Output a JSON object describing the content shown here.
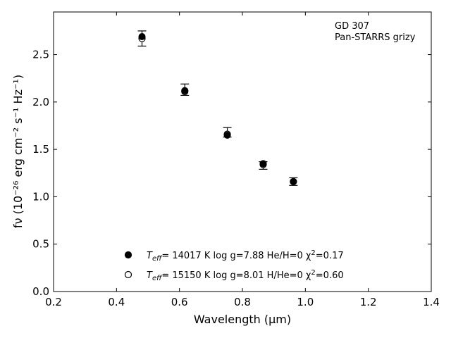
{
  "chart_data": {
    "type": "scatter",
    "xlabel": "Wavelength (μm)",
    "ylabel": "fν (10⁻²⁶ erg cm⁻² s⁻¹ Hz⁻¹)",
    "xlim": [
      0.2,
      1.4
    ],
    "ylim": [
      0.0,
      2.95
    ],
    "xticks": [
      "0.2",
      "0.4",
      "0.6",
      "0.8",
      "1.0",
      "1.2",
      "1.4"
    ],
    "yticks": [
      "0.0",
      "0.5",
      "1.0",
      "1.5",
      "2.0",
      "2.5"
    ],
    "grid": false,
    "annotation": {
      "line1": "GD 307",
      "line2": "Pan-STARRS grizy"
    },
    "series": [
      {
        "name": "Teff= 14017 K log g=7.88 He/H=0 χ²=0.17",
        "marker": "filled-circle",
        "color": "#000000",
        "x": [
          0.481,
          0.617,
          0.752,
          0.866,
          0.962
        ],
        "y": [
          2.69,
          2.12,
          1.65,
          1.35,
          1.16
        ]
      },
      {
        "name": "Teff= 15150 K log g=8.01 H/He=0 χ²=0.60",
        "marker": "open-circle",
        "color": "#000000",
        "x": [
          0.481,
          0.617,
          0.752,
          0.866,
          0.962
        ],
        "y": [
          2.67,
          2.11,
          1.66,
          1.34,
          1.16
        ]
      },
      {
        "name": "Pan-STARRS grizy",
        "marker": "errorbar",
        "color": "#000000",
        "x": [
          0.481,
          0.617,
          0.752,
          0.866,
          0.962
        ],
        "y": [
          2.67,
          2.13,
          1.68,
          1.33,
          1.16
        ],
        "yerr_low": [
          0.08,
          0.06,
          0.05,
          0.04,
          0.04
        ],
        "yerr_high": [
          0.08,
          0.06,
          0.05,
          0.04,
          0.04
        ]
      }
    ],
    "legend": {
      "placement": "lower-center",
      "entries": [
        {
          "marker": "filled-circle",
          "label_parts": [
            "T",
            "eff",
            "= 14017 K  log g=7.88  He/H=0  χ",
            "2",
            "=0.17"
          ]
        },
        {
          "marker": "open-circle",
          "label_parts": [
            "T",
            "eff",
            "= 15150 K  log g=8.01  H/He=0  χ",
            "2",
            "=0.60"
          ]
        }
      ]
    }
  }
}
